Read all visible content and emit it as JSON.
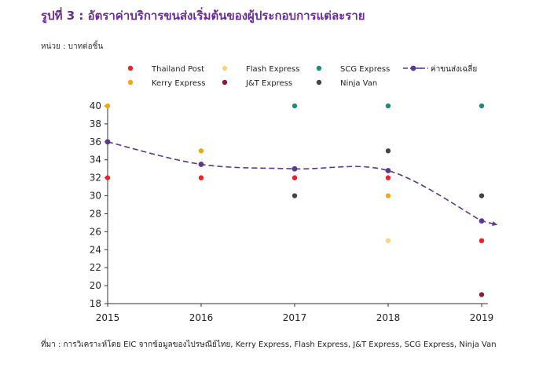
{
  "title": "รูปที่ 3 : อัตราค่าบริการขนส่งเริ่มต้นของผู้ประกอบการแต่ละราย",
  "unit_label": "หน่วย : บาทต่อชิ้น",
  "source": "ที่มา : การวิเคราะห์โดย EIC จากข้อมูลของไปรษณีย์ไทย, Kerry Express, Flash Express, J&T Express, SCG Express, Ninja Van",
  "chart_data": {
    "type": "scatter",
    "x": [
      2015,
      2016,
      2017,
      2018,
      2019
    ],
    "ylim": [
      18,
      40
    ],
    "yticks": [
      18,
      20,
      22,
      24,
      26,
      28,
      30,
      32,
      34,
      36,
      38,
      40
    ],
    "legend_position": "top",
    "series": [
      {
        "name": "Thailand Post",
        "color": "#e3262b",
        "points": [
          [
            2015,
            32
          ],
          [
            2016,
            32
          ],
          [
            2017,
            32
          ],
          [
            2018,
            32
          ],
          [
            2019,
            25
          ]
        ]
      },
      {
        "name": "Kerry Express",
        "color": "#f3a712",
        "points": [
          [
            2015,
            40
          ],
          [
            2016,
            35
          ],
          [
            2018,
            30
          ]
        ]
      },
      {
        "name": "Flash Express",
        "color": "#f8d57a",
        "points": [
          [
            2018,
            25
          ]
        ]
      },
      {
        "name": "J&T Express",
        "color": "#8b1a3a",
        "points": [
          [
            2019,
            19
          ]
        ]
      },
      {
        "name": "SCG Express",
        "color": "#1f8a80",
        "points": [
          [
            2017,
            40
          ],
          [
            2018,
            40
          ],
          [
            2019,
            40
          ]
        ]
      },
      {
        "name": "Ninja Van",
        "color": "#444444",
        "points": [
          [
            2017,
            30
          ],
          [
            2018,
            35
          ],
          [
            2019,
            30
          ]
        ]
      },
      {
        "name": "ค่าขนส่งเฉลี่ย",
        "color": "#5b3a8c",
        "type": "line",
        "dashed": true,
        "points": [
          [
            2015,
            36
          ],
          [
            2016,
            33.5
          ],
          [
            2017,
            33
          ],
          [
            2018,
            32.8
          ],
          [
            2019,
            27.2
          ]
        ]
      }
    ]
  }
}
